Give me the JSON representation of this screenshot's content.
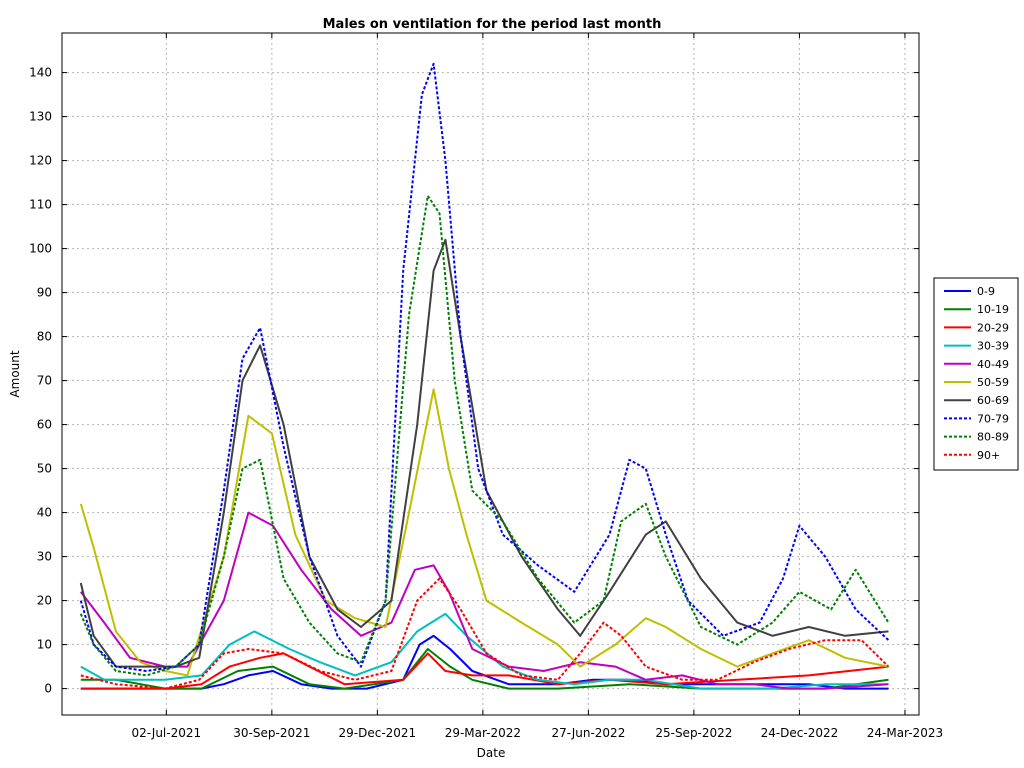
{
  "chart_data": {
    "type": "line",
    "title": "Males on ventilation for the period last month",
    "xlabel": "Date",
    "ylabel": "Amount",
    "x_tick_labels": [
      "02-Jul-2021",
      "30-Sep-2021",
      "29-Dec-2021",
      "29-Mar-2022",
      "27-Jun-2022",
      "25-Sep-2022",
      "24-Dec-2022",
      "24-Mar-2023"
    ],
    "y_ticks": [
      0,
      10,
      20,
      30,
      40,
      50,
      60,
      70,
      80,
      90,
      100,
      110,
      120,
      130,
      140
    ],
    "xlim": [
      "2021-04-04",
      "2023-04-05"
    ],
    "ylim": [
      -6,
      149
    ],
    "grid": true,
    "legend_position": "right",
    "series": [
      {
        "name": "0-9",
        "color": "#0000ff",
        "dash": "solid",
        "x": [
          "2021-04-20",
          "2021-05-20",
          "2021-07-01",
          "2021-08-01",
          "2021-08-20",
          "2021-09-10",
          "2021-10-01",
          "2021-10-25",
          "2021-11-20",
          "2021-12-20",
          "2022-01-20",
          "2022-02-03",
          "2022-02-15",
          "2022-03-01",
          "2022-03-20",
          "2022-04-20",
          "2022-06-01",
          "2022-07-01",
          "2022-08-01",
          "2022-09-01",
          "2022-10-01",
          "2022-11-01",
          "2022-12-01",
          "2023-01-01",
          "2023-02-01",
          "2023-03-10"
        ],
        "y": [
          0,
          0,
          0,
          0,
          1,
          3,
          4,
          1,
          0,
          0,
          2,
          10,
          12,
          9,
          4,
          1,
          1,
          2,
          2,
          1,
          1,
          1,
          1,
          1,
          0,
          0
        ]
      },
      {
        "name": "10-19",
        "color": "#008000",
        "dash": "solid",
        "x": [
          "2021-04-20",
          "2021-05-20",
          "2021-07-01",
          "2021-08-01",
          "2021-09-01",
          "2021-10-01",
          "2021-11-01",
          "2021-12-01",
          "2022-01-20",
          "2022-02-10",
          "2022-03-01",
          "2022-03-20",
          "2022-04-20",
          "2022-06-01",
          "2022-08-01",
          "2022-10-01",
          "2022-12-01",
          "2023-01-15",
          "2023-03-10"
        ],
        "y": [
          2,
          2,
          0,
          0,
          4,
          5,
          1,
          0,
          2,
          9,
          5,
          2,
          0,
          0,
          1,
          0,
          0,
          0,
          2
        ]
      },
      {
        "name": "20-29",
        "color": "#ff0000",
        "dash": "solid",
        "x": [
          "2021-04-20",
          "2021-05-20",
          "2021-07-01",
          "2021-08-01",
          "2021-08-25",
          "2021-09-20",
          "2021-10-10",
          "2021-11-01",
          "2021-12-01",
          "2022-01-20",
          "2022-02-10",
          "2022-02-25",
          "2022-03-20",
          "2022-04-20",
          "2022-06-01",
          "2022-07-15",
          "2022-09-01",
          "2022-11-01",
          "2023-01-01",
          "2023-03-10"
        ],
        "y": [
          0,
          0,
          0,
          1,
          5,
          7,
          8,
          5,
          1,
          2,
          8,
          4,
          3,
          3,
          1,
          2,
          1,
          2,
          3,
          5
        ]
      },
      {
        "name": "30-39",
        "color": "#00bfbf",
        "dash": "solid",
        "x": [
          "2021-04-20",
          "2021-05-10",
          "2021-06-01",
          "2021-07-01",
          "2021-08-01",
          "2021-08-25",
          "2021-09-15",
          "2021-10-15",
          "2021-11-10",
          "2021-12-10",
          "2022-01-10",
          "2022-02-01",
          "2022-02-25",
          "2022-03-15",
          "2022-04-15",
          "2022-05-15",
          "2022-06-15",
          "2022-07-15",
          "2022-08-15",
          "2022-10-01",
          "2022-12-01",
          "2023-01-15",
          "2023-03-10"
        ],
        "y": [
          5,
          2,
          2,
          2,
          3,
          10,
          13,
          9,
          6,
          3,
          6,
          13,
          17,
          12,
          5,
          2,
          1,
          2,
          2,
          0,
          0,
          1,
          1
        ]
      },
      {
        "name": "40-49",
        "color": "#bf00bf",
        "dash": "solid",
        "x": [
          "2021-04-20",
          "2021-05-10",
          "2021-06-01",
          "2021-07-01",
          "2021-07-20",
          "2021-08-20",
          "2021-09-10",
          "2021-10-01",
          "2021-10-25",
          "2021-11-20",
          "2021-12-15",
          "2022-01-10",
          "2022-01-30",
          "2022-02-15",
          "2022-02-28",
          "2022-03-20",
          "2022-04-20",
          "2022-05-20",
          "2022-06-20",
          "2022-07-20",
          "2022-08-15",
          "2022-09-15",
          "2022-10-15",
          "2022-11-15",
          "2022-12-15",
          "2023-01-15",
          "2023-03-10"
        ],
        "y": [
          22,
          15,
          7,
          5,
          5,
          20,
          40,
          37,
          27,
          18,
          12,
          15,
          27,
          28,
          22,
          9,
          5,
          4,
          6,
          5,
          2,
          3,
          1,
          1,
          0,
          0,
          1
        ]
      },
      {
        "name": "50-59",
        "color": "#bfbf00",
        "dash": "solid",
        "x": [
          "2021-04-20",
          "2021-05-01",
          "2021-05-20",
          "2021-06-10",
          "2021-07-01",
          "2021-07-20",
          "2021-08-20",
          "2021-09-10",
          "2021-09-30",
          "2021-10-20",
          "2021-11-15",
          "2021-12-10",
          "2022-01-05",
          "2022-01-25",
          "2022-02-15",
          "2022-02-28",
          "2022-03-15",
          "2022-04-01",
          "2022-05-01",
          "2022-06-01",
          "2022-06-20",
          "2022-07-20",
          "2022-08-15",
          "2022-09-01",
          "2022-10-01",
          "2022-11-01",
          "2022-12-01",
          "2023-01-01",
          "2023-02-01",
          "2023-03-10"
        ],
        "y": [
          42,
          32,
          13,
          6,
          4,
          3,
          30,
          62,
          58,
          35,
          20,
          16,
          14,
          40,
          68,
          50,
          35,
          20,
          15,
          10,
          5,
          10,
          16,
          14,
          9,
          5,
          8,
          11,
          7,
          5
        ]
      },
      {
        "name": "60-69",
        "color": "#404040",
        "dash": "solid",
        "x": [
          "2021-04-20",
          "2021-05-01",
          "2021-05-20",
          "2021-06-15",
          "2021-07-10",
          "2021-07-30",
          "2021-08-20",
          "2021-09-05",
          "2021-09-20",
          "2021-10-10",
          "2021-11-01",
          "2021-11-25",
          "2021-12-15",
          "2022-01-10",
          "2022-02-01",
          "2022-02-15",
          "2022-02-25",
          "2022-03-10",
          "2022-04-01",
          "2022-05-01",
          "2022-06-01",
          "2022-06-20",
          "2022-07-15",
          "2022-08-15",
          "2022-09-01",
          "2022-10-01",
          "2022-11-01",
          "2022-12-01",
          "2023-01-01",
          "2023-02-01",
          "2023-03-10"
        ],
        "y": [
          24,
          12,
          5,
          5,
          5,
          7,
          40,
          70,
          78,
          60,
          30,
          18,
          14,
          20,
          60,
          95,
          102,
          80,
          45,
          30,
          18,
          12,
          22,
          35,
          38,
          25,
          15,
          12,
          14,
          12,
          13
        ]
      },
      {
        "name": "70-79",
        "color": "#0000ff",
        "dash": "dotted",
        "x": [
          "2021-04-20",
          "2021-05-01",
          "2021-05-20",
          "2021-06-15",
          "2021-07-10",
          "2021-07-30",
          "2021-08-20",
          "2021-09-05",
          "2021-09-20",
          "2021-10-10",
          "2021-11-01",
          "2021-11-25",
          "2021-12-15",
          "2022-01-05",
          "2022-01-20",
          "2022-02-05",
          "2022-02-15",
          "2022-02-25",
          "2022-03-10",
          "2022-03-25",
          "2022-04-15",
          "2022-05-15",
          "2022-06-15",
          "2022-07-15",
          "2022-08-01",
          "2022-08-15",
          "2022-09-01",
          "2022-09-20",
          "2022-10-20",
          "2022-11-20",
          "2022-12-10",
          "2022-12-24",
          "2023-01-15",
          "2023-02-10",
          "2023-03-10"
        ],
        "y": [
          20,
          10,
          5,
          4,
          5,
          10,
          45,
          75,
          82,
          55,
          30,
          12,
          5,
          20,
          95,
          135,
          142,
          120,
          80,
          50,
          35,
          28,
          22,
          35,
          52,
          50,
          35,
          20,
          12,
          15,
          25,
          37,
          30,
          18,
          11
        ]
      },
      {
        "name": "80-89",
        "color": "#008000",
        "dash": "dotted",
        "x": [
          "2021-04-20",
          "2021-05-01",
          "2021-05-20",
          "2021-06-15",
          "2021-07-10",
          "2021-07-30",
          "2021-08-20",
          "2021-09-05",
          "2021-09-20",
          "2021-10-10",
          "2021-11-01",
          "2021-11-25",
          "2021-12-15",
          "2022-01-05",
          "2022-01-25",
          "2022-02-10",
          "2022-02-20",
          "2022-03-05",
          "2022-03-20",
          "2022-04-15",
          "2022-05-15",
          "2022-06-15",
          "2022-07-10",
          "2022-07-25",
          "2022-08-15",
          "2022-09-01",
          "2022-10-01",
          "2022-11-01",
          "2022-12-01",
          "2022-12-24",
          "2023-01-20",
          "2023-02-10",
          "2023-03-10"
        ],
        "y": [
          17,
          10,
          4,
          3,
          5,
          10,
          30,
          50,
          52,
          25,
          15,
          8,
          6,
          20,
          85,
          112,
          108,
          70,
          45,
          38,
          25,
          15,
          20,
          38,
          42,
          30,
          14,
          10,
          15,
          22,
          18,
          27,
          15
        ]
      },
      {
        "name": "90+",
        "color": "#ff0000",
        "dash": "dotted",
        "x": [
          "2021-04-20",
          "2021-05-20",
          "2021-07-01",
          "2021-07-30",
          "2021-08-20",
          "2021-09-10",
          "2021-10-10",
          "2021-11-10",
          "2021-12-10",
          "2022-01-10",
          "2022-02-01",
          "2022-02-20",
          "2022-03-10",
          "2022-04-01",
          "2022-05-01",
          "2022-06-01",
          "2022-06-20",
          "2022-07-10",
          "2022-07-25",
          "2022-08-15",
          "2022-09-15",
          "2022-10-15",
          "2022-11-15",
          "2022-12-15",
          "2023-01-15",
          "2023-02-15",
          "2023-03-10"
        ],
        "y": [
          3,
          1,
          0,
          2,
          8,
          9,
          8,
          4,
          2,
          4,
          20,
          25,
          18,
          8,
          3,
          2,
          8,
          15,
          12,
          5,
          2,
          2,
          6,
          9,
          11,
          11,
          5
        ]
      }
    ]
  }
}
